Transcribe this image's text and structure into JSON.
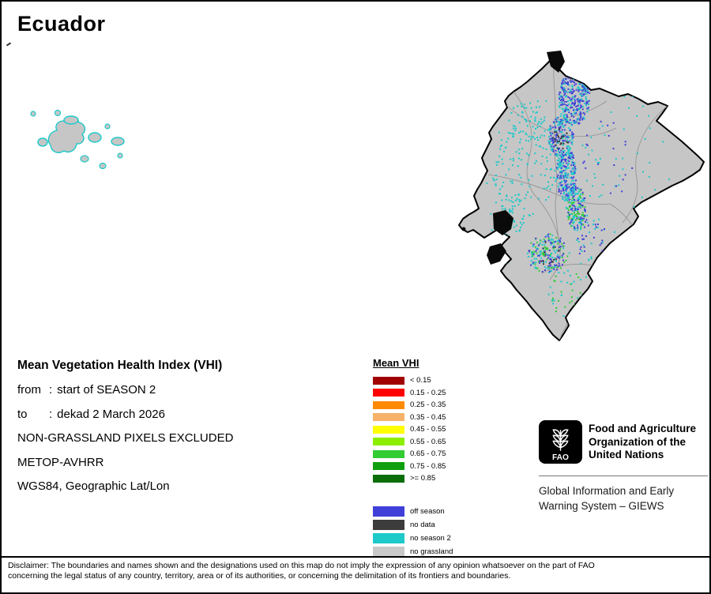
{
  "page": {
    "title": "Ecuador"
  },
  "info": {
    "heading": "Mean Vegetation Health Index (VHI)",
    "params": [
      {
        "label": "from",
        "sep": ":",
        "value": "start of SEASON 2"
      },
      {
        "label": "to",
        "sep": ":",
        "value": "dekad 2 March 2026"
      }
    ],
    "notes": [
      "NON-GRASSLAND PIXELS EXCLUDED",
      "METOP-AVHRR",
      "WGS84, Geographic Lat/Lon"
    ]
  },
  "legend": {
    "title": "Mean VHI",
    "classes": [
      {
        "label": "< 0.15",
        "color": "#a00000"
      },
      {
        "label": "0.15 - 0.25",
        "color": "#ff0000"
      },
      {
        "label": "0.25 - 0.35",
        "color": "#ff8a00"
      },
      {
        "label": "0.35 - 0.45",
        "color": "#f6b26b"
      },
      {
        "label": "0.45 - 0.55",
        "color": "#ffff00"
      },
      {
        "label": "0.55 - 0.65",
        "color": "#8cee00"
      },
      {
        "label": "0.65 - 0.75",
        "color": "#33cc33"
      },
      {
        "label": "0.75 - 0.85",
        "color": "#0f9f0f"
      },
      {
        "label": ">= 0.85",
        "color": "#0b6e0b"
      }
    ],
    "extra": [
      {
        "label": "off season",
        "color": "#4040d8"
      },
      {
        "label": "no data",
        "color": "#3c3c3c"
      },
      {
        "label": "no season 2",
        "color": "#1ec9c9"
      },
      {
        "label": "no grassland",
        "color": "#c9c9c9"
      }
    ]
  },
  "fao": {
    "logo_text": "FAO",
    "org_lines": [
      "Food and Agriculture",
      "Organization of the",
      "United Nations"
    ],
    "giews_lines": [
      "Global Information and Early",
      "Warning System – GIEWS"
    ]
  },
  "map": {
    "land_color": "#c6c6c6",
    "outline_color": "#000000"
  },
  "disclaimer": {
    "lines": [
      "Disclaimer: The boundaries and names shown and the designations used on this map do not imply the expression of any opinion whatsoever on the part of FAO",
      "concerning the legal status of any country, territory, area or of its authorities, or concerning the delimitation of its frontiers and boundaries."
    ]
  }
}
